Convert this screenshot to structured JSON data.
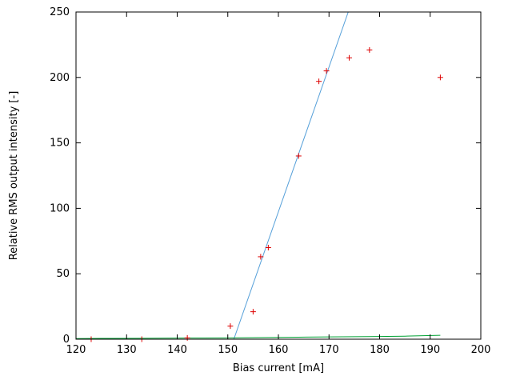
{
  "figure": {
    "background": "#ffffff",
    "axis_color": "#000000",
    "tick_label_color": "#000000"
  },
  "chart_data": {
    "type": "scatter",
    "title": "",
    "xlabel": "Bias current [mA]",
    "ylabel": "Relative RMS output intensity [-]",
    "xlim": [
      120,
      200
    ],
    "ylim": [
      0,
      250
    ],
    "x_ticks": [
      120,
      130,
      140,
      150,
      160,
      170,
      180,
      190,
      200
    ],
    "y_ticks": [
      0,
      50,
      100,
      150,
      200,
      250
    ],
    "grid": false,
    "legend": "none",
    "series": [
      {
        "name": "linear-fit-line",
        "type": "line",
        "color": "#56a0d9",
        "width": 1,
        "points": [
          [
            151.2,
            0
          ],
          [
            173.8,
            250
          ]
        ]
      },
      {
        "name": "baseline-curve",
        "type": "line",
        "color": "#00a033",
        "width": 1,
        "points": [
          [
            120,
            0.5
          ],
          [
            127,
            0.6
          ],
          [
            133,
            0.7
          ],
          [
            142,
            0.9
          ],
          [
            150,
            1.0
          ],
          [
            156,
            1.2
          ],
          [
            164,
            1.5
          ],
          [
            170,
            1.8
          ],
          [
            178,
            2.0
          ],
          [
            185,
            2.3
          ],
          [
            192,
            3.0
          ]
        ]
      },
      {
        "name": "measured-points",
        "type": "points",
        "marker": "plus",
        "color": "#dd0000",
        "marker_size": 7,
        "points": [
          [
            123,
            0
          ],
          [
            133,
            0
          ],
          [
            142,
            1
          ],
          [
            150.5,
            10
          ],
          [
            155,
            21
          ],
          [
            156.5,
            63
          ],
          [
            158,
            70
          ],
          [
            164,
            140
          ],
          [
            168,
            197
          ],
          [
            169.5,
            205
          ],
          [
            174,
            215
          ],
          [
            178,
            221
          ],
          [
            192,
            200
          ]
        ]
      }
    ]
  }
}
